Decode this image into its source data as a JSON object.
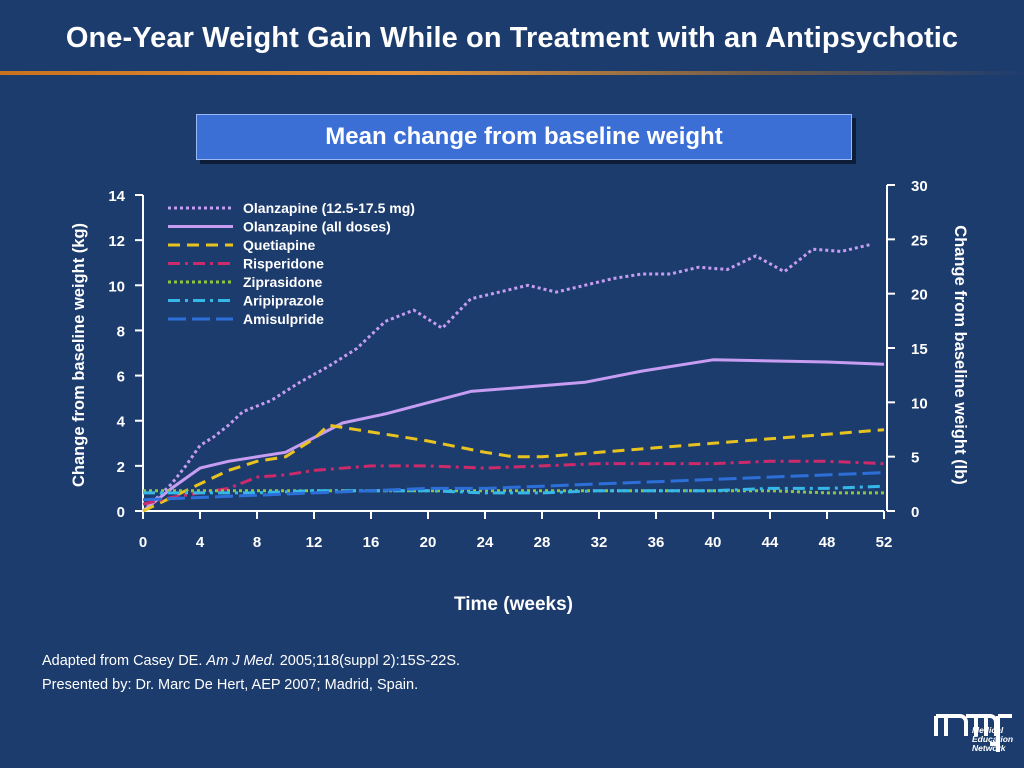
{
  "slide": {
    "title": "One-Year Weight Gain While on Treatment with an Antipsychotic",
    "subtitle": "Mean change from baseline weight",
    "citation_prefix": "Adapted from Casey DE. ",
    "citation_journal": "Am J Med.",
    "citation_suffix": " 2005;118(suppl 2):15S-22S.",
    "presented_by": "Presented by: Dr. Marc De Hert, AEP 2007; Madrid, Spain.",
    "logo_line1": "Medical",
    "logo_line2": "Education",
    "logo_line3": "Network"
  },
  "colors": {
    "background": "#1d3c6e",
    "accent_rule": "#e7943a",
    "subtitle_box": "#3b6fd6"
  },
  "chart_data": {
    "type": "line",
    "xlabel": "Time (weeks)",
    "ylabel": "Change from baseline weight (kg)",
    "ylabel_right": "Change from baseline weight (lb)",
    "xlim": [
      0,
      52
    ],
    "ylim": [
      0,
      14
    ],
    "ylim_right": [
      0,
      30
    ],
    "xticks": [
      0,
      4,
      8,
      12,
      16,
      20,
      24,
      28,
      32,
      36,
      40,
      44,
      48,
      52
    ],
    "yticks": [
      0,
      2,
      4,
      6,
      8,
      10,
      12,
      14
    ],
    "yticks_right": [
      0,
      5,
      10,
      15,
      20,
      25,
      30
    ],
    "legend_position": "top-left",
    "series": [
      {
        "name": "Olanzapine (12.5-17.5 mg)",
        "color": "#c79df2",
        "style": "dotted",
        "points": [
          [
            0,
            0
          ],
          [
            1,
            0.6
          ],
          [
            2,
            1.2
          ],
          [
            3,
            2.0
          ],
          [
            4,
            2.9
          ],
          [
            5,
            3.3
          ],
          [
            6,
            3.8
          ],
          [
            7,
            4.4
          ],
          [
            9,
            4.9
          ],
          [
            11,
            5.7
          ],
          [
            13,
            6.4
          ],
          [
            15,
            7.2
          ],
          [
            17,
            8.4
          ],
          [
            19,
            8.9
          ],
          [
            21,
            8.1
          ],
          [
            23,
            9.4
          ],
          [
            25,
            9.7
          ],
          [
            27,
            10.0
          ],
          [
            29,
            9.7
          ],
          [
            31,
            10.0
          ],
          [
            33,
            10.3
          ],
          [
            35,
            10.5
          ],
          [
            37,
            10.5
          ],
          [
            39,
            10.8
          ],
          [
            41,
            10.7
          ],
          [
            43,
            11.3
          ],
          [
            45,
            10.6
          ],
          [
            47,
            11.6
          ],
          [
            49,
            11.5
          ],
          [
            51,
            11.8
          ]
        ]
      },
      {
        "name": "Olanzapine (all doses)",
        "color": "#c79df2",
        "style": "solid",
        "points": [
          [
            0,
            0
          ],
          [
            2,
            1.0
          ],
          [
            4,
            1.9
          ],
          [
            6,
            2.2
          ],
          [
            10,
            2.6
          ],
          [
            14,
            3.9
          ],
          [
            17,
            4.3
          ],
          [
            20,
            4.8
          ],
          [
            23,
            5.3
          ],
          [
            27,
            5.5
          ],
          [
            31,
            5.7
          ],
          [
            35,
            6.2
          ],
          [
            40,
            6.7
          ],
          [
            48,
            6.6
          ],
          [
            52,
            6.5
          ]
        ]
      },
      {
        "name": "Quetiapine",
        "color": "#e8c21e",
        "style": "dashed",
        "points": [
          [
            0,
            0
          ],
          [
            2,
            0.6
          ],
          [
            4,
            1.2
          ],
          [
            6,
            1.8
          ],
          [
            8,
            2.2
          ],
          [
            10,
            2.4
          ],
          [
            12,
            3.2
          ],
          [
            13,
            3.8
          ],
          [
            15,
            3.6
          ],
          [
            20,
            3.1
          ],
          [
            24,
            2.6
          ],
          [
            26,
            2.4
          ],
          [
            28,
            2.4
          ],
          [
            32,
            2.6
          ],
          [
            36,
            2.8
          ],
          [
            40,
            3.0
          ],
          [
            44,
            3.2
          ],
          [
            48,
            3.4
          ],
          [
            52,
            3.6
          ]
        ]
      },
      {
        "name": "Risperidone",
        "color": "#cc2a6a",
        "style": "dashdot",
        "points": [
          [
            0,
            0.3
          ],
          [
            2,
            0.6
          ],
          [
            4,
            0.8
          ],
          [
            6,
            1.0
          ],
          [
            8,
            1.5
          ],
          [
            10,
            1.6
          ],
          [
            12,
            1.8
          ],
          [
            16,
            2.0
          ],
          [
            20,
            2.0
          ],
          [
            24,
            1.9
          ],
          [
            28,
            2.0
          ],
          [
            32,
            2.1
          ],
          [
            36,
            2.1
          ],
          [
            40,
            2.1
          ],
          [
            44,
            2.2
          ],
          [
            48,
            2.2
          ],
          [
            52,
            2.1
          ]
        ]
      },
      {
        "name": "Ziprasidone",
        "color": "#8ec63f",
        "style": "dotted",
        "points": [
          [
            0,
            0.9
          ],
          [
            8,
            0.9
          ],
          [
            16,
            0.9
          ],
          [
            24,
            0.9
          ],
          [
            32,
            0.9
          ],
          [
            40,
            0.9
          ],
          [
            44,
            0.9
          ],
          [
            48,
            0.8
          ],
          [
            52,
            0.8
          ]
        ]
      },
      {
        "name": "Aripiprazole",
        "color": "#35b8e6",
        "style": "dashdot",
        "points": [
          [
            0,
            0.8
          ],
          [
            4,
            0.8
          ],
          [
            8,
            0.8
          ],
          [
            12,
            0.9
          ],
          [
            16,
            0.9
          ],
          [
            20,
            0.9
          ],
          [
            24,
            0.8
          ],
          [
            28,
            0.8
          ],
          [
            32,
            0.9
          ],
          [
            36,
            0.9
          ],
          [
            40,
            0.9
          ],
          [
            44,
            1.0
          ],
          [
            48,
            1.0
          ],
          [
            52,
            1.1
          ]
        ]
      },
      {
        "name": "Amisulpride",
        "color": "#2d6fd8",
        "style": "longdash",
        "points": [
          [
            0,
            0.5
          ],
          [
            4,
            0.6
          ],
          [
            8,
            0.7
          ],
          [
            12,
            0.8
          ],
          [
            16,
            0.9
          ],
          [
            20,
            1.0
          ],
          [
            24,
            1.0
          ],
          [
            28,
            1.1
          ],
          [
            32,
            1.2
          ],
          [
            36,
            1.3
          ],
          [
            40,
            1.4
          ],
          [
            44,
            1.5
          ],
          [
            48,
            1.6
          ],
          [
            52,
            1.7
          ]
        ]
      }
    ]
  }
}
